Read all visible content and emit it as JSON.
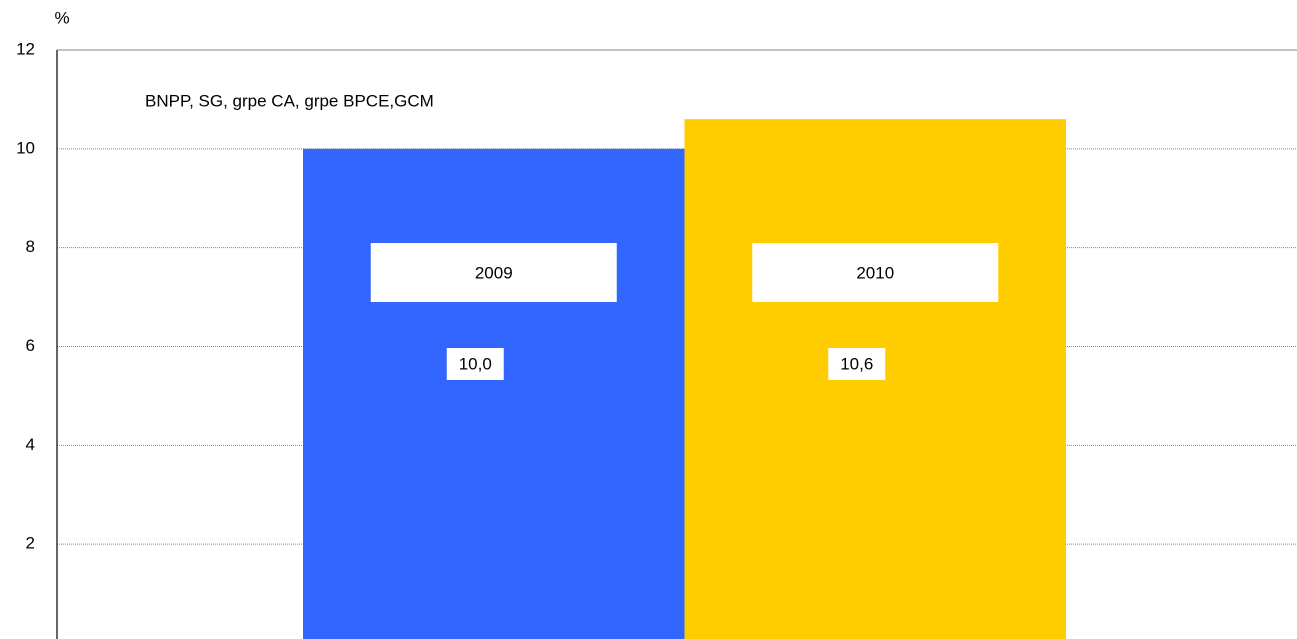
{
  "chart_data": {
    "type": "bar",
    "y_label": "%",
    "annotation": "BNPP,  SG, grpe CA, grpe BPCE,GCM",
    "categories": [
      "2009",
      "2010"
    ],
    "values": [
      10.0,
      10.6
    ],
    "value_labels": [
      "10,0",
      "10,6"
    ],
    "colors": [
      "#3366ff",
      "#ffcc00"
    ],
    "ylim": [
      0,
      12
    ],
    "yticks": [
      2,
      4,
      6,
      8,
      10,
      12
    ],
    "grid": true
  }
}
